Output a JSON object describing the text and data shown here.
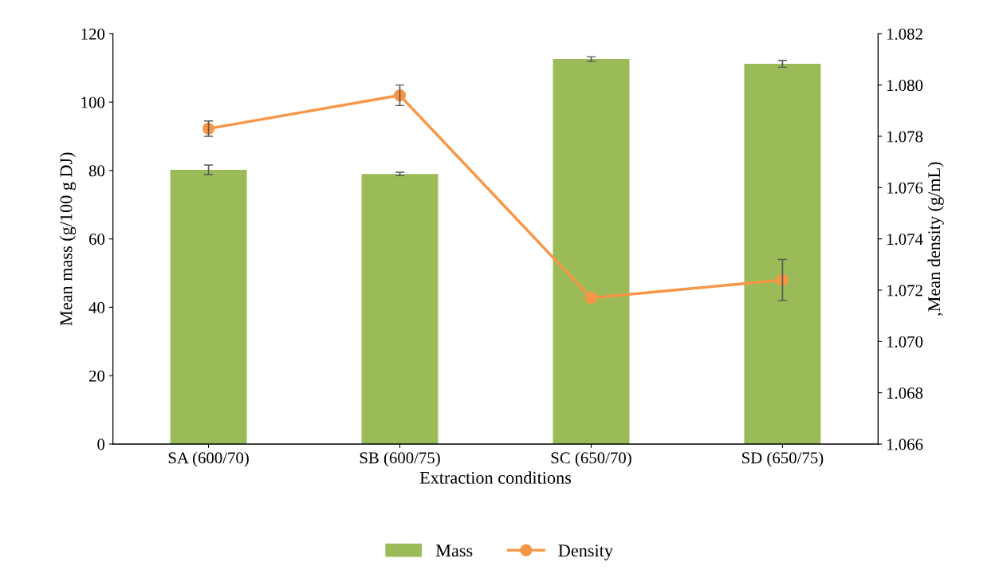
{
  "chart_data": {
    "type": "bar",
    "xlabel": "Extraction conditions",
    "ylabel": "Mean mass (g/100 g DJ)",
    "y2label": ",Mean density (g/mL)",
    "categories": [
      "SA (600/70)",
      "SB (600/75)",
      "SC (650/70)",
      "SD (650/75)"
    ],
    "series": [
      {
        "name": "Mass",
        "color": "#9bbb59",
        "values": [
          80.2,
          79.0,
          112.6,
          111.2
        ],
        "errors": [
          1.4,
          0.5,
          0.7,
          1.0
        ]
      },
      {
        "name": "Density",
        "type": "line",
        "axis": "y2",
        "color": "#f79646",
        "values": [
          1.0783,
          1.0796,
          1.0717,
          1.0724
        ],
        "errors": [
          0.0003,
          0.0004,
          null,
          0.0008
        ]
      }
    ],
    "ylim": [
      0,
      120
    ],
    "yticks": [
      0,
      20,
      40,
      60,
      80,
      100,
      120
    ],
    "y2lim": [
      1.066,
      1.082
    ],
    "y2ticks": [
      {
        "value": 1.066,
        "label": "1.066"
      },
      {
        "value": 1.068,
        "label": "1.068"
      },
      {
        "value": 1.07,
        "label": "1.070"
      },
      {
        "value": 1.072,
        "label": "1.072"
      },
      {
        "value": 1.074,
        "label": "1.074"
      },
      {
        "value": 1.076,
        "label": "1.076"
      },
      {
        "value": 1.078,
        "label": "1.078"
      },
      {
        "value": 1.08,
        "label": "1.080"
      },
      {
        "value": 1.082,
        "label": "1.082"
      }
    ],
    "grid": false,
    "legend": "bottom",
    "marker": "circle",
    "line_style": "solid"
  }
}
